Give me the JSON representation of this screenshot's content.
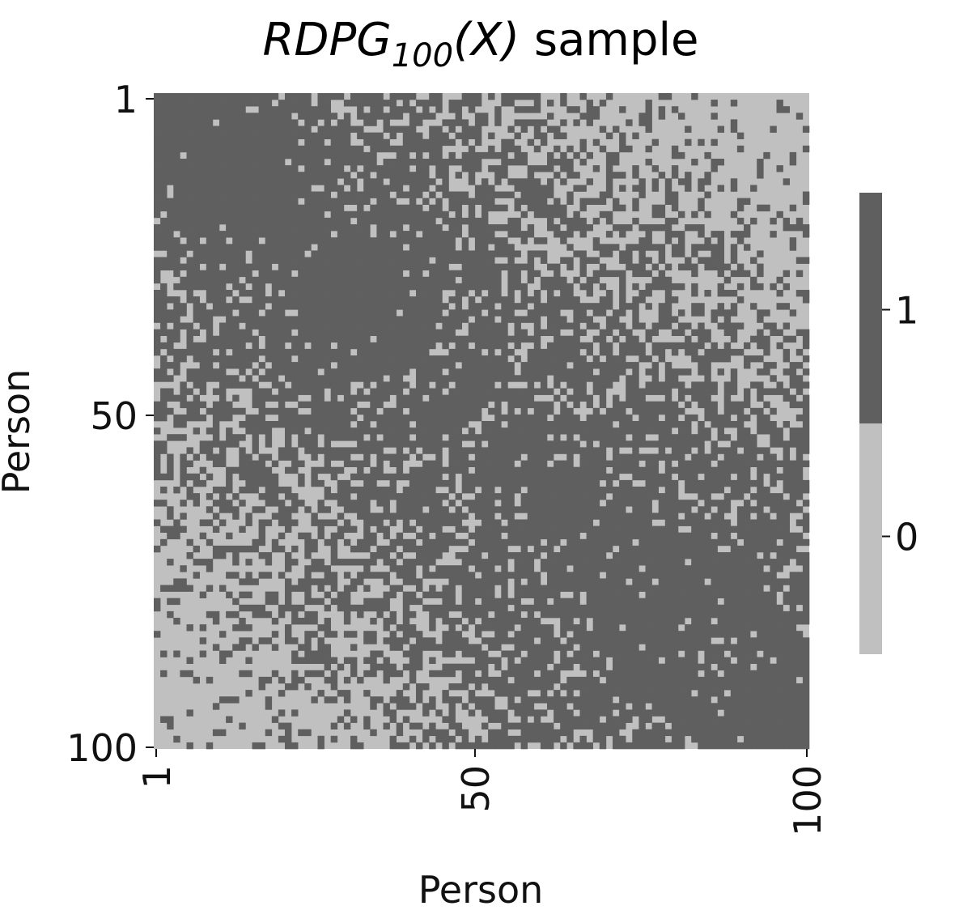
{
  "chart_data": {
    "type": "heatmap",
    "title": {
      "base": "RDPG",
      "subscript": "100",
      "argument": "(X)",
      "suffix": " sample"
    },
    "xlabel": "Person",
    "ylabel": "Person",
    "n": 100,
    "x_ticks": [
      "1",
      "50",
      "100"
    ],
    "y_ticks": [
      "1",
      "50",
      "100"
    ],
    "colorbar": {
      "ticks": [
        "1",
        "0"
      ],
      "values": [
        1,
        0
      ]
    },
    "colors": {
      "edge": "#5f5f5f",
      "no_edge": "#c0c0c0"
    },
    "connection_probability": "higher among persons close in index, decreasing with index distance; symmetric matrix with filled diagonal"
  }
}
